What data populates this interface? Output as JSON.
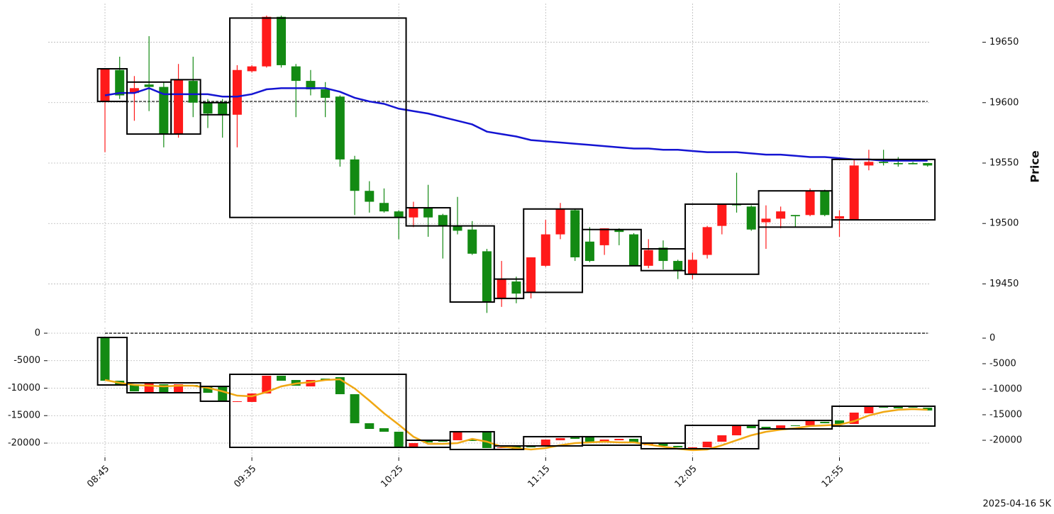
{
  "chart_data": [
    {
      "type": "candlestick",
      "ylabel": "Price",
      "ytick_side": "right",
      "grid": true,
      "up_color": "#ff1a1a",
      "down_color": "#138a13",
      "box_color": "#000000",
      "ylim": [
        19418,
        19682
      ],
      "yticks": [
        19450,
        19500,
        19550,
        19600,
        19650
      ],
      "hline": 19601,
      "open": [
        19601,
        19627,
        19608,
        19615,
        19613,
        19574,
        19618,
        19600,
        19600,
        19590,
        19626,
        19630,
        19671,
        19630,
        19618,
        19611,
        19605,
        19553,
        19527,
        19517,
        19510,
        19505,
        19513,
        19507,
        19498,
        19495,
        19477,
        19438,
        19452,
        19443,
        19465,
        19491,
        19511,
        19485,
        19482,
        19495,
        19491,
        19465,
        19480,
        19469,
        19458,
        19474,
        19498,
        19516,
        19514,
        19501,
        19504,
        19507,
        19507,
        19527,
        19504,
        19503,
        19548,
        19551,
        19550,
        19550,
        19550
      ],
      "high": [
        19628,
        19638,
        19622,
        19655,
        19617,
        19632,
        19638,
        19603,
        19603,
        19631,
        19631,
        19672,
        19672,
        19632,
        19627,
        19617,
        19606,
        19556,
        19535,
        19529,
        19511,
        19518,
        19532,
        19508,
        19522,
        19502,
        19479,
        19469,
        19456,
        19472,
        19503,
        19517,
        19512,
        19497,
        19496,
        19496,
        19492,
        19487,
        19486,
        19470,
        19476,
        19498,
        19516,
        19542,
        19515,
        19515,
        19514,
        19507,
        19529,
        19528,
        19511,
        19553,
        19561,
        19561,
        19555,
        19551,
        19550
      ],
      "low": [
        19559,
        19603,
        19585,
        19593,
        19563,
        19571,
        19588,
        19579,
        19571,
        19563,
        19625,
        19629,
        19629,
        19588,
        19606,
        19588,
        19547,
        19507,
        19509,
        19509,
        19487,
        19497,
        19489,
        19471,
        19491,
        19474,
        19426,
        19431,
        19434,
        19438,
        19464,
        19487,
        19469,
        19468,
        19474,
        19482,
        19465,
        19463,
        19462,
        19454,
        19454,
        19471,
        19491,
        19509,
        19494,
        19479,
        19496,
        19497,
        19506,
        19506,
        19489,
        19503,
        19544,
        19548,
        19547,
        19549,
        19547
      ],
      "close": [
        19628,
        19606,
        19612,
        19613,
        19574,
        19619,
        19600,
        19591,
        19590,
        19627,
        19630,
        19671,
        19631,
        19618,
        19611,
        19604,
        19553,
        19527,
        19518,
        19510,
        19505,
        19513,
        19505,
        19498,
        19494,
        19475,
        19435,
        19454,
        19442,
        19472,
        19491,
        19512,
        19472,
        19469,
        19496,
        19493,
        19465,
        19478,
        19469,
        19461,
        19470,
        19497,
        19516,
        19515,
        19495,
        19504,
        19510,
        19506,
        19527,
        19507,
        19506,
        19548,
        19551,
        19550,
        19549,
        19549,
        19548
      ],
      "boxes": {
        "from": [
          0,
          2,
          5,
          7,
          9,
          21,
          24,
          27,
          29,
          33,
          37,
          40,
          45,
          50
        ],
        "to": [
          1,
          4,
          6,
          8,
          20,
          23,
          26,
          28,
          32,
          36,
          39,
          44,
          49,
          56
        ],
        "high": [
          19628,
          19617,
          19619,
          19600,
          19670,
          19513,
          19498,
          19454,
          19512,
          19495,
          19479,
          19516,
          19527,
          19553
        ],
        "low": [
          19601,
          19574,
          19574,
          19590,
          19505,
          19498,
          19435,
          19438,
          19443,
          19465,
          19461,
          19458,
          19497,
          19503
        ]
      },
      "series": [
        {
          "color": "#1414d2",
          "values": [
            19606,
            19608,
            19608,
            19612,
            19607,
            19607,
            19607,
            19607,
            19605,
            19605,
            19607,
            19611,
            19612,
            19612,
            19612,
            19612,
            19609,
            19604,
            19601,
            19599,
            19595,
            19593,
            19591,
            19588,
            19585,
            19582,
            19576,
            19574,
            19572,
            19569,
            19568,
            19567,
            19566,
            19565,
            19564,
            19563,
            19562,
            19562,
            19561,
            19561,
            19560,
            19559,
            19559,
            19559,
            19558,
            19557,
            19557,
            19556,
            19555,
            19555,
            19554,
            19553,
            19553,
            19552,
            19552,
            19552,
            19552
          ]
        }
      ]
    },
    {
      "type": "candlestick",
      "ytick_side": "left",
      "grid": true,
      "up_color": "#ff1a1a",
      "down_color": "#138a13",
      "box_color": "#000000",
      "ylim": [
        -22580,
        1030
      ],
      "yticks": [
        0,
        -5000,
        -10000,
        -15000,
        -20000
      ],
      "y2lim": [
        -23330,
        2080
      ],
      "y2ticks": [
        0,
        -5000,
        -10000,
        -15000,
        -20000
      ],
      "hline": 0,
      "categories": [
        "08:45",
        null,
        null,
        null,
        null,
        null,
        null,
        null,
        null,
        null,
        "09:35",
        null,
        null,
        null,
        null,
        null,
        null,
        null,
        null,
        null,
        "10:25",
        null,
        null,
        null,
        null,
        null,
        null,
        null,
        null,
        null,
        "11:15",
        null,
        null,
        null,
        null,
        null,
        null,
        null,
        null,
        null,
        "12:05",
        null,
        null,
        null,
        null,
        null,
        null,
        null,
        null,
        null,
        "12:55",
        null,
        null,
        null,
        null,
        null,
        null
      ],
      "open": [
        -774,
        -8645,
        -9290,
        -10710,
        -9290,
        -10710,
        -9420,
        -9680,
        -9680,
        -12510,
        -12510,
        -10970,
        -7740,
        -8515,
        -9680,
        -8260,
        -8000,
        -11100,
        -16380,
        -17290,
        -17930,
        -20770,
        -19610,
        -19480,
        -19480,
        -19350,
        -17930,
        -20900,
        -20640,
        -20510,
        -20510,
        -19480,
        -18960,
        -18830,
        -19740,
        -19480,
        -19220,
        -20380,
        -20120,
        -20510,
        -21030,
        -20770,
        -19740,
        -18580,
        -16770,
        -17030,
        -17420,
        -16770,
        -16770,
        -16120,
        -15870,
        -16510,
        -14580,
        -13290,
        -13290,
        -13290,
        -13550
      ],
      "high": [
        -774,
        -8645,
        -9290,
        -9160,
        -9290,
        -9290,
        -9420,
        -9680,
        -9680,
        -12380,
        -10970,
        -7740,
        -7740,
        -8515,
        -8515,
        -8260,
        -8000,
        -11100,
        -16380,
        -17290,
        -17930,
        -20000,
        -19610,
        -19480,
        -17930,
        -19350,
        -17930,
        -20770,
        -20640,
        -20510,
        -19350,
        -19090,
        -18960,
        -18830,
        -19350,
        -19220,
        -19220,
        -19870,
        -20120,
        -20510,
        -20770,
        -19740,
        -18580,
        -16770,
        -16770,
        -17030,
        -16770,
        -16770,
        -15870,
        -16120,
        -15870,
        -14450,
        -13420,
        -13290,
        -13290,
        -13290,
        -13550
      ],
      "low": [
        -8645,
        -9290,
        -10580,
        -10710,
        -10710,
        -10710,
        -9680,
        -10840,
        -12260,
        -12510,
        -12510,
        -10970,
        -8645,
        -9550,
        -9680,
        -8645,
        -11100,
        -16380,
        -17420,
        -17930,
        -20640,
        -20770,
        -19870,
        -19740,
        -19480,
        -19610,
        -20900,
        -20900,
        -21030,
        -20770,
        -20510,
        -19480,
        -19220,
        -19740,
        -19740,
        -19480,
        -19870,
        -20380,
        -20510,
        -20770,
        -21030,
        -20770,
        -19740,
        -18580,
        -17290,
        -17290,
        -17420,
        -16900,
        -16770,
        -16380,
        -16510,
        -16510,
        -14580,
        -13550,
        -13680,
        -13550,
        -14060
      ],
      "close": [
        -8645,
        -9290,
        -10580,
        -9160,
        -10710,
        -9290,
        -9680,
        -10840,
        -12260,
        -12380,
        -10970,
        -7740,
        -8645,
        -9550,
        -8515,
        -8645,
        -11100,
        -16380,
        -17420,
        -17930,
        -20640,
        -20000,
        -19870,
        -19740,
        -17930,
        -19610,
        -20900,
        -20770,
        -21030,
        -20770,
        -19350,
        -19090,
        -19220,
        -19740,
        -19350,
        -19220,
        -19870,
        -19870,
        -20510,
        -20770,
        -20770,
        -19740,
        -18580,
        -16770,
        -17290,
        -17290,
        -16770,
        -16900,
        -15870,
        -16380,
        -16510,
        -14450,
        -13420,
        -13550,
        -13680,
        -13550,
        -14060
      ],
      "boxes": {
        "from": [
          0,
          2,
          7,
          9,
          21,
          24,
          27,
          29,
          33,
          37,
          40,
          45,
          50
        ],
        "to": [
          1,
          6,
          8,
          20,
          23,
          26,
          28,
          32,
          36,
          39,
          44,
          49,
          56
        ],
        "high": [
          -774,
          -9030,
          -9680,
          -7480,
          -19480,
          -17930,
          -20510,
          -18830,
          -18830,
          -20000,
          -16770,
          -15870,
          -13290
        ],
        "low": [
          -9420,
          -10840,
          -12380,
          -20770,
          -20770,
          -21160,
          -21160,
          -20510,
          -20380,
          -21030,
          -21030,
          -17420,
          -16900
        ]
      },
      "series": [
        {
          "color": "#f0a814",
          "values": [
            -8520,
            -9030,
            -9420,
            -9550,
            -9680,
            -9550,
            -9550,
            -9940,
            -10580,
            -11360,
            -11480,
            -10710,
            -9680,
            -9160,
            -8900,
            -8520,
            -8390,
            -10060,
            -12260,
            -14580,
            -16650,
            -18840,
            -20130,
            -20130,
            -20000,
            -19230,
            -19740,
            -20650,
            -20900,
            -21160,
            -20900,
            -20390,
            -20000,
            -19870,
            -19740,
            -19870,
            -19870,
            -20260,
            -20650,
            -21030,
            -21290,
            -21160,
            -20390,
            -19480,
            -18580,
            -17940,
            -17550,
            -17290,
            -16900,
            -16770,
            -16650,
            -16000,
            -14970,
            -14320,
            -13940,
            -13810,
            -13940
          ]
        }
      ]
    }
  ],
  "footer": "2025-04-16 5K"
}
